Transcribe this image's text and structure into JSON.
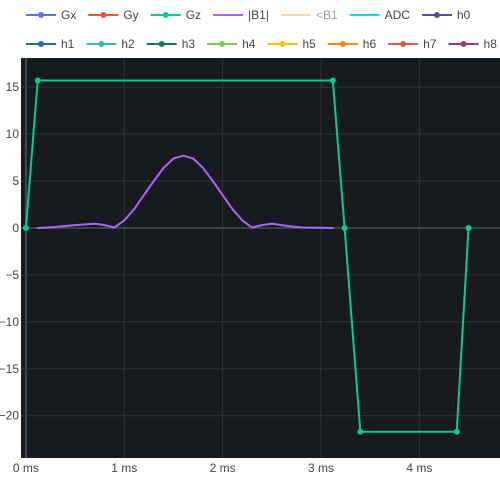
{
  "chart_data": {
    "type": "line",
    "title": "",
    "xlabel": "",
    "ylabel": "",
    "xlim": [
      -0.05,
      4.82
    ],
    "ylim": [
      -24.5,
      18.1
    ],
    "x_ticks": [
      {
        "value": 0,
        "label": "0 ms"
      },
      {
        "value": 1,
        "label": "1 ms"
      },
      {
        "value": 2,
        "label": "2 ms"
      },
      {
        "value": 3,
        "label": "3 ms"
      },
      {
        "value": 4,
        "label": "4 ms"
      }
    ],
    "y_ticks": [
      {
        "value": 15,
        "label": "15"
      },
      {
        "value": 10,
        "label": "10"
      },
      {
        "value": 5,
        "label": "5"
      },
      {
        "value": 0,
        "label": "0"
      },
      {
        "value": -5,
        "label": "−5"
      },
      {
        "value": -10,
        "label": "−10"
      },
      {
        "value": -15,
        "label": "−15"
      },
      {
        "value": -20,
        "label": "−20"
      }
    ],
    "grid": true,
    "legend_position": "top",
    "background": "#181b1e",
    "grid_color": "#2f3439",
    "series": [
      {
        "name": "Gx",
        "color": "#636efa",
        "markers": true,
        "faded": false,
        "x": [],
        "y": []
      },
      {
        "name": "Gy",
        "color": "#ef553b",
        "markers": true,
        "faded": false,
        "x": [],
        "y": []
      },
      {
        "name": "Gz",
        "color": "#00cc96",
        "markers": true,
        "faded": false,
        "x": [
          0,
          0.12,
          3.12,
          3.24,
          3.4,
          4.38,
          4.5
        ],
        "y": [
          0,
          15.7,
          15.7,
          0,
          -21.7,
          -21.7,
          0
        ]
      },
      {
        "name": "|B1|",
        "color": "#ab63fa",
        "markers": false,
        "faded": false,
        "x": [
          0.12,
          0.3,
          0.5,
          0.7,
          0.8,
          0.9,
          1.0,
          1.1,
          1.2,
          1.3,
          1.4,
          1.5,
          1.6,
          1.7,
          1.8,
          1.9,
          2.0,
          2.1,
          2.2,
          2.3,
          2.4,
          2.5,
          2.6,
          2.7,
          2.8,
          3.0,
          3.12
        ],
        "y": [
          0.0,
          0.1,
          0.3,
          0.45,
          0.3,
          0.05,
          0.8,
          2.0,
          3.5,
          5.0,
          6.4,
          7.4,
          7.7,
          7.4,
          6.4,
          5.0,
          3.5,
          2.0,
          0.8,
          0.05,
          0.3,
          0.45,
          0.3,
          0.15,
          0.05,
          0.02,
          0.0
        ]
      },
      {
        "name": "<B1",
        "color": "#ffa15a",
        "markers": false,
        "faded": true,
        "x": [],
        "y": []
      },
      {
        "name": "ADC",
        "color": "#19d3f3",
        "markers": false,
        "faded": false,
        "x": [],
        "y": []
      },
      {
        "name": "h0",
        "color": "#5c4a9a",
        "markers": true,
        "faded": false,
        "x": [],
        "y": []
      },
      {
        "name": "h1",
        "color": "#1f6f9a",
        "markers": true,
        "faded": false,
        "x": [],
        "y": []
      },
      {
        "name": "h2",
        "color": "#3fb5b5",
        "markers": true,
        "faded": false,
        "x": [],
        "y": []
      },
      {
        "name": "h3",
        "color": "#1a7a4a",
        "markers": true,
        "faded": false,
        "x": [],
        "y": []
      },
      {
        "name": "h4",
        "color": "#7ec857",
        "markers": true,
        "faded": false,
        "x": [],
        "y": []
      },
      {
        "name": "h5",
        "color": "#f2c20e",
        "markers": true,
        "faded": false,
        "x": [],
        "y": []
      },
      {
        "name": "h6",
        "color": "#ee8a0f",
        "markers": true,
        "faded": false,
        "x": [],
        "y": []
      },
      {
        "name": "h7",
        "color": "#e0574f",
        "markers": true,
        "faded": false,
        "x": [],
        "y": []
      },
      {
        "name": "h8",
        "color": "#9a3a7a",
        "markers": true,
        "faded": false,
        "x": [],
        "y": []
      }
    ]
  }
}
